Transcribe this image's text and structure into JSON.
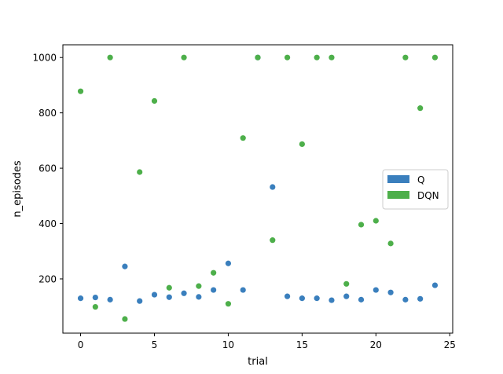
{
  "chart_data": {
    "type": "scatter",
    "title": "",
    "xlabel": "trial",
    "ylabel": "n_episodes",
    "xlim": [
      -1.2,
      25.2
    ],
    "ylim": [
      4,
      1046
    ],
    "x_ticks": [
      0,
      5,
      10,
      15,
      20,
      25
    ],
    "y_ticks": [
      200,
      400,
      600,
      800,
      1000
    ],
    "grid": false,
    "legend": {
      "placement": "center-right",
      "entries": [
        {
          "name": "Q",
          "color": "#3a7fbd"
        },
        {
          "name": "DQN",
          "color": "#4daf4a"
        }
      ]
    },
    "series": [
      {
        "name": "Q",
        "color": "#3a7fbd",
        "x": [
          0,
          1,
          2,
          3,
          4,
          5,
          6,
          7,
          8,
          9,
          10,
          11,
          12,
          13,
          14,
          15,
          16,
          17,
          18,
          19,
          20,
          21,
          22,
          23,
          24
        ],
        "y": [
          130,
          133,
          125,
          245,
          120,
          143,
          134,
          148,
          135,
          160,
          256,
          160,
          1000,
          532,
          137,
          130,
          130,
          123,
          137,
          125,
          160,
          151,
          125,
          128,
          177
        ]
      },
      {
        "name": "DQN",
        "color": "#4daf4a",
        "x": [
          0,
          1,
          2,
          3,
          4,
          5,
          6,
          7,
          8,
          9,
          10,
          11,
          12,
          13,
          14,
          15,
          16,
          17,
          18,
          19,
          20,
          21,
          22,
          23,
          24
        ],
        "y": [
          878,
          99,
          1000,
          55,
          586,
          843,
          168,
          1000,
          174,
          222,
          110,
          709,
          1000,
          340,
          1000,
          687,
          1000,
          1000,
          182,
          396,
          410,
          328,
          1000,
          817,
          1000
        ]
      }
    ]
  }
}
